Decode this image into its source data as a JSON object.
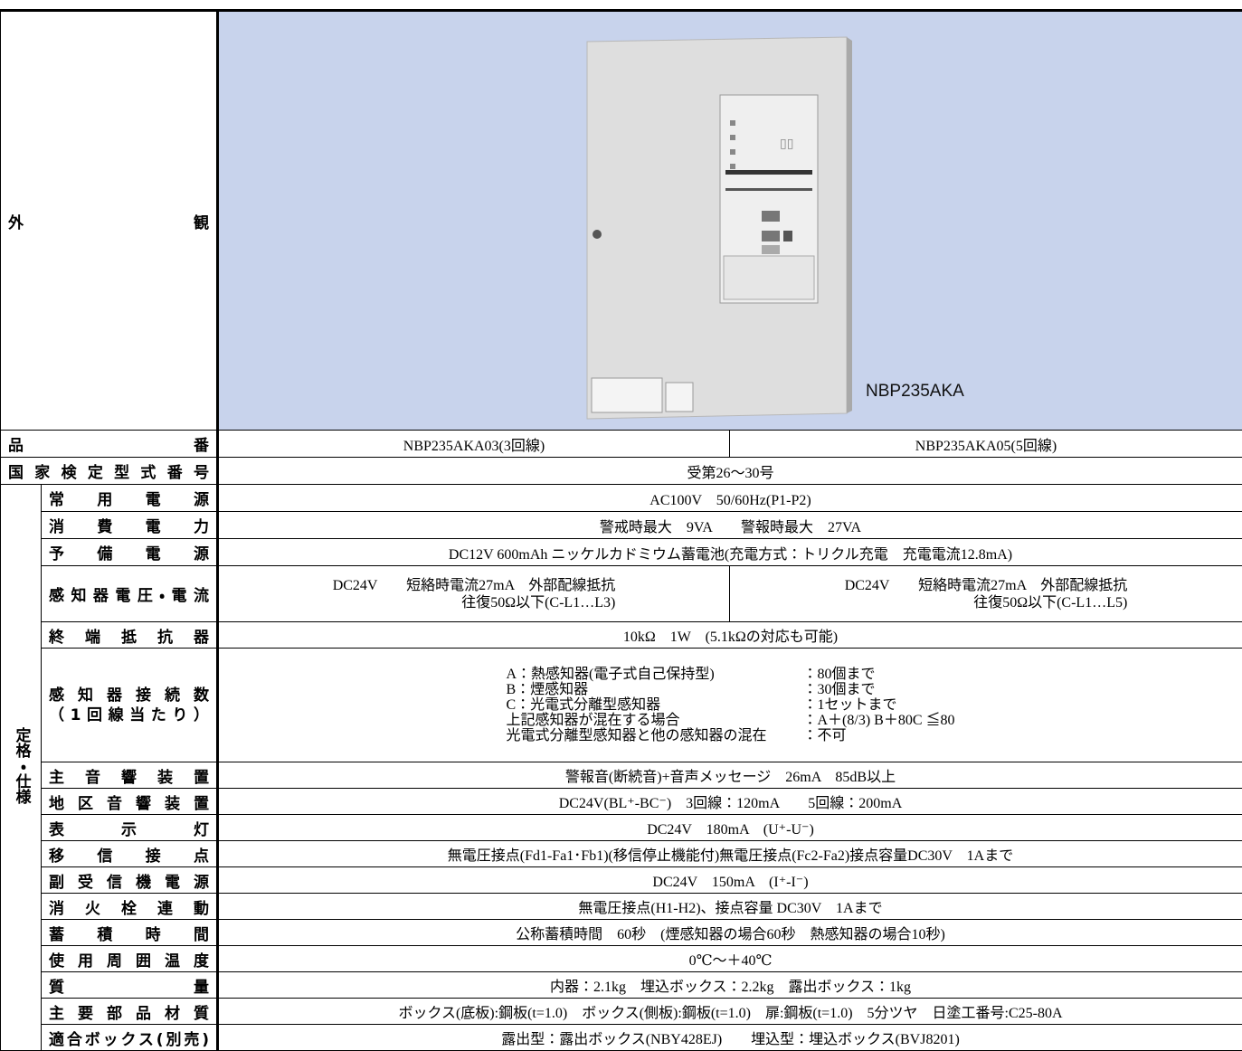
{
  "appearance": {
    "label": "外観",
    "model": "NBP235AKA"
  },
  "model_number": {
    "label": "品番",
    "values": [
      "NBP235AKA03(3回線)",
      "NBP235AKA05(5回線)"
    ]
  },
  "certification": {
    "label": "国家検定型式番号",
    "value": "受第26～30号"
  },
  "specs": {
    "group_label": "定格・仕様",
    "rows": [
      {
        "label": "常用電源",
        "value": "AC100V　50/60Hz(P1-P2)"
      },
      {
        "label": "消費電力",
        "value": "警戒時最大　9VA　　警報時最大　27VA"
      },
      {
        "label": "予備電源",
        "value": "DC12V 600mAh ニッケルカドミウム蓄電池(充電方式：トリクル充電　充電電流12.8mA)"
      },
      {
        "label": "感知器電圧・電流",
        "columns": [
          [
            "DC24V　　短絡時電流27mA　外部配線抵抗",
            "往復50Ω以下(C-L1…L3)"
          ],
          [
            "DC24V　　短絡時電流27mA　外部配線抵抗",
            "往復50Ω以下(C-L1…L5)"
          ]
        ]
      },
      {
        "label": "終端抵抗器",
        "value": "10kΩ　1W　(5.1kΩの対応も可能)"
      },
      {
        "label_lines": [
          "感知器接続数",
          "（1回線当たり）"
        ],
        "lines": [
          {
            "item": "A：熱感知器(電子式自己保持型)",
            "limit": "：80個まで"
          },
          {
            "item": "B：煙感知器",
            "limit": "：30個まで"
          },
          {
            "item": "C：光電式分離型感知器",
            "limit": "：1セットまで"
          },
          {
            "item": "上記感知器が混在する場合",
            "limit": "：A＋(8/3) B＋80C ≦80"
          },
          {
            "item": "光電式分離型感知器と他の感知器の混在",
            "limit": "：不可"
          }
        ]
      },
      {
        "label": "主音響装置",
        "value": "警報音(断続音)+音声メッセージ　26mA　85dB以上"
      },
      {
        "label": "地区音響装置",
        "value": "DC24V(BL⁺-BC⁻)　3回線：120mA　　5回線：200mA"
      },
      {
        "label": "表示灯",
        "value": "DC24V　180mA　(U⁺-U⁻)"
      },
      {
        "label": "移信接点",
        "value": "無電圧接点(Fd1-Fa1･Fb1)(移信停止機能付)無電圧接点(Fc2-Fa2)接点容量DC30V　1Aまで"
      },
      {
        "label": "副受信機電源",
        "value": "DC24V　150mA　(I⁺-I⁻)"
      },
      {
        "label": "消火栓連動",
        "value": "無電圧接点(H1-H2)、接点容量 DC30V　1Aまで"
      },
      {
        "label": "蓄積時間",
        "value": "公称蓄積時間　60秒　(煙感知器の場合60秒　熱感知器の場合10秒)"
      },
      {
        "label": "使用周囲温度",
        "value": "0℃～＋40℃"
      },
      {
        "label": "質量",
        "value": "内器：2.1kg　埋込ボックス：2.2kg　露出ボックス：1kg"
      },
      {
        "label": "主要部品材質",
        "value": "ボックス(底板):鋼板(t=1.0)　ボックス(側板):鋼板(t=1.0)　扉:鋼板(t=1.0)　5分ツヤ　日塗工番号:C25-80A"
      },
      {
        "label": "適合ボックス(別売)",
        "value": "露出型：露出ボックス(NBY428EJ)　　埋込型：埋込ボックス(BVJ8201)"
      }
    ]
  }
}
